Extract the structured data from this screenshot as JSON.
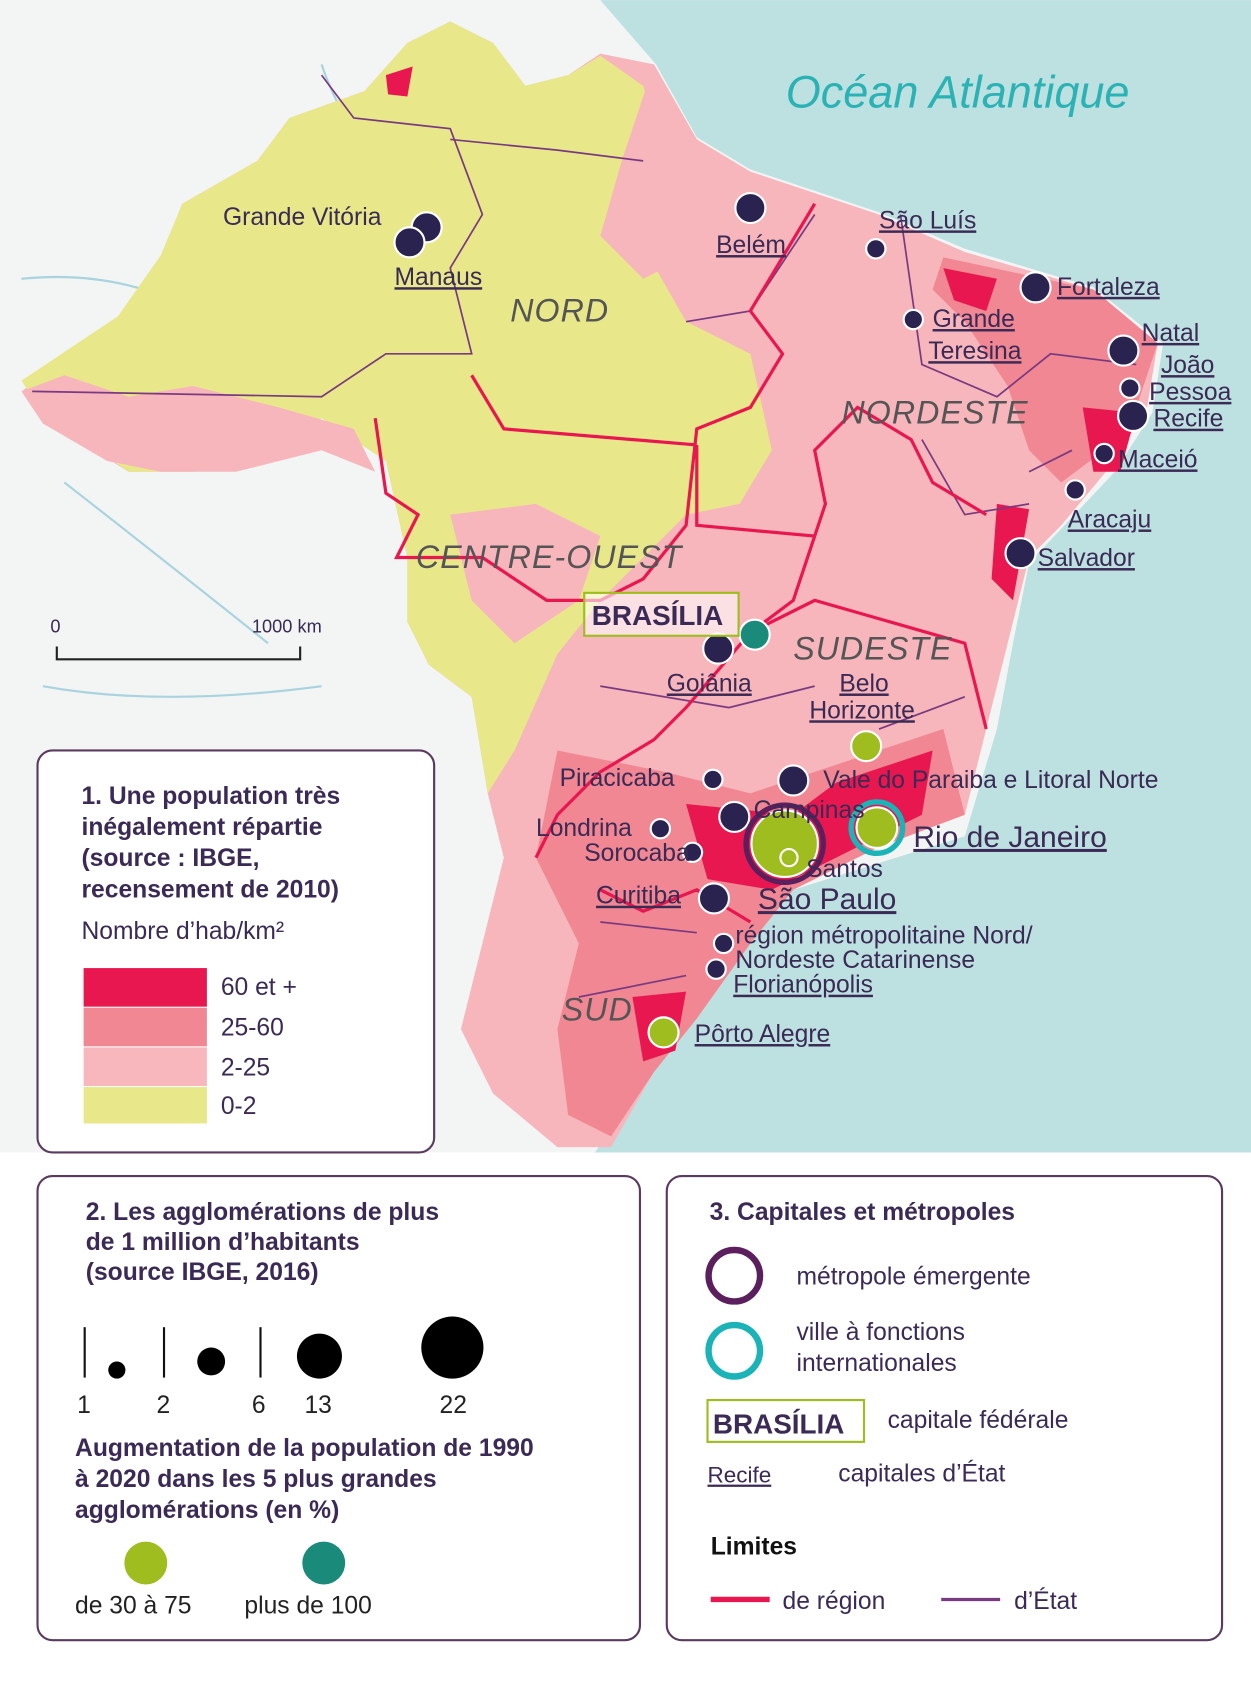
{
  "map": {
    "ocean": "Océan Atlantique",
    "regions": [
      "NORD",
      "NORDESTE",
      "CENTRE-OUEST",
      "SUDESTE",
      "SUD"
    ],
    "capital": "BRASÍLIA",
    "scale": [
      "0",
      "1000 km"
    ],
    "cities": [
      {
        "lines": [
          "Grande Vitória"
        ]
      },
      {
        "lines": [
          "Manaus"
        ]
      },
      {
        "lines": [
          "Belém"
        ]
      },
      {
        "lines": [
          "São Luís"
        ]
      },
      {
        "lines": [
          "Fortaleza"
        ]
      },
      {
        "lines": [
          "Grande",
          "Teresina"
        ]
      },
      {
        "lines": [
          "Natal"
        ]
      },
      {
        "lines": [
          "João",
          "Pessoa"
        ]
      },
      {
        "lines": [
          "Recife"
        ]
      },
      {
        "lines": [
          "Maceió"
        ]
      },
      {
        "lines": [
          "Aracaju"
        ]
      },
      {
        "lines": [
          "Salvador"
        ]
      },
      {
        "lines": [
          "Goiânia"
        ]
      },
      {
        "lines": [
          "Belo",
          "Horizonte"
        ]
      },
      {
        "lines": [
          "Piracicaba"
        ]
      },
      {
        "lines": [
          "Vale do Paraiba e Litoral Norte"
        ]
      },
      {
        "lines": [
          "Campinas"
        ]
      },
      {
        "lines": [
          "Londrina"
        ]
      },
      {
        "lines": [
          "Sorocaba"
        ]
      },
      {
        "lines": [
          "Santos"
        ]
      },
      {
        "lines": [
          "São Paulo"
        ]
      },
      {
        "lines": [
          "Rio de Janeiro"
        ]
      },
      {
        "lines": [
          "Curitiba"
        ]
      },
      {
        "lines": [
          "région métropolitaine Nord/",
          "Nordeste Catarinense"
        ]
      },
      {
        "lines": [
          "Florianópolis"
        ]
      },
      {
        "lines": [
          "Pôrto Alegre"
        ]
      }
    ]
  },
  "legend_density": {
    "title_lines": [
      "1. Une population très",
      "inégalement répartie",
      "(source : IBGE,",
      "recensement de 2010)"
    ],
    "unit": "Nombre d’hab/km²",
    "classes": [
      "60 et +",
      "25-60",
      "2-25",
      "0-2"
    ]
  },
  "legend_agglomerations": {
    "title_lines": [
      "2. Les agglomérations de plus",
      "de 1 million d’habitants",
      "(source IBGE, 2016)"
    ],
    "sizes": [
      1,
      2,
      6,
      13,
      22
    ],
    "growth_title_lines": [
      "Augmentation de la population de 1990",
      "à 2020 dans les 5 plus grandes",
      "agglomérations (en %)"
    ],
    "growth_classes": [
      "de 30 à 75",
      "plus de 100"
    ]
  },
  "legend_capitals": {
    "title": "3. Capitales et métropoles",
    "emerging": "métropole émergente",
    "international_lines": [
      "ville à fonctions",
      "internationales"
    ],
    "federal_example": "BRASÍLIA",
    "federal_label": "capitale fédérale",
    "state_example": "Recife",
    "state_label": "capitales d’État",
    "limits_title": "Limites",
    "limits": [
      "de région",
      "d’État"
    ]
  }
}
